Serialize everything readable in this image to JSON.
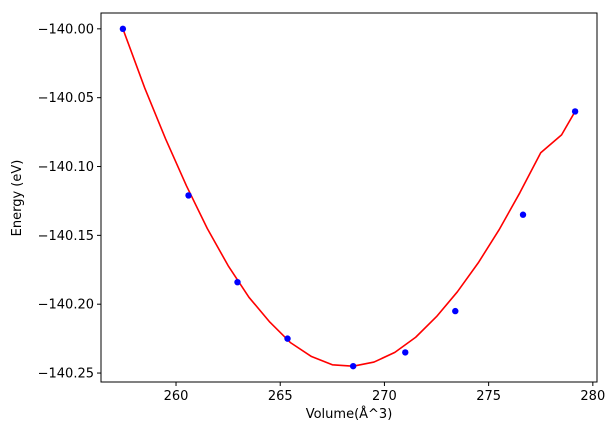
{
  "chart_data": {
    "type": "scatter",
    "title": "",
    "xlabel": "Volume(Å^3)",
    "ylabel": "Energy (eV)",
    "xlim": [
      256.4,
      280.2
    ],
    "ylim": [
      -140.2565,
      -139.9885
    ],
    "x_ticks": [
      260,
      265,
      270,
      275,
      280
    ],
    "x_tick_labels": [
      "260",
      "265",
      "270",
      "275",
      "280"
    ],
    "y_ticks": [
      -140.25,
      -140.2,
      -140.15,
      -140.1,
      -140.05,
      -140.0
    ],
    "y_tick_labels": [
      "−140.25",
      "−140.20",
      "−140.15",
      "−140.10",
      "−140.05",
      "−140.00"
    ],
    "grid": false,
    "series": [
      {
        "kind": "points",
        "color": "#0000ff",
        "x": [
          257.45,
          260.6,
          262.95,
          265.35,
          268.5,
          271.0,
          273.4,
          276.65,
          279.15
        ],
        "y": [
          -140.0,
          -140.121,
          -140.184,
          -140.225,
          -140.245,
          -140.235,
          -140.205,
          -140.135,
          -140.06
        ]
      },
      {
        "kind": "fit_curve",
        "color": "#ff0000",
        "x": [
          257.45,
          258.5,
          259.5,
          260.5,
          261.5,
          262.5,
          263.5,
          264.5,
          265.5,
          266.5,
          267.5,
          268.5,
          269.5,
          270.5,
          271.5,
          272.5,
          273.5,
          274.5,
          275.5,
          276.5,
          277.5,
          278.5,
          279.15
        ],
        "y": [
          -140.0,
          -140.043,
          -140.08,
          -140.114,
          -140.145,
          -140.172,
          -140.195,
          -140.213,
          -140.228,
          -140.238,
          -140.244,
          -140.245,
          -140.242,
          -140.235,
          -140.224,
          -140.209,
          -140.191,
          -140.17,
          -140.146,
          -140.119,
          -140.09,
          -140.077,
          -140.06
        ]
      }
    ]
  }
}
